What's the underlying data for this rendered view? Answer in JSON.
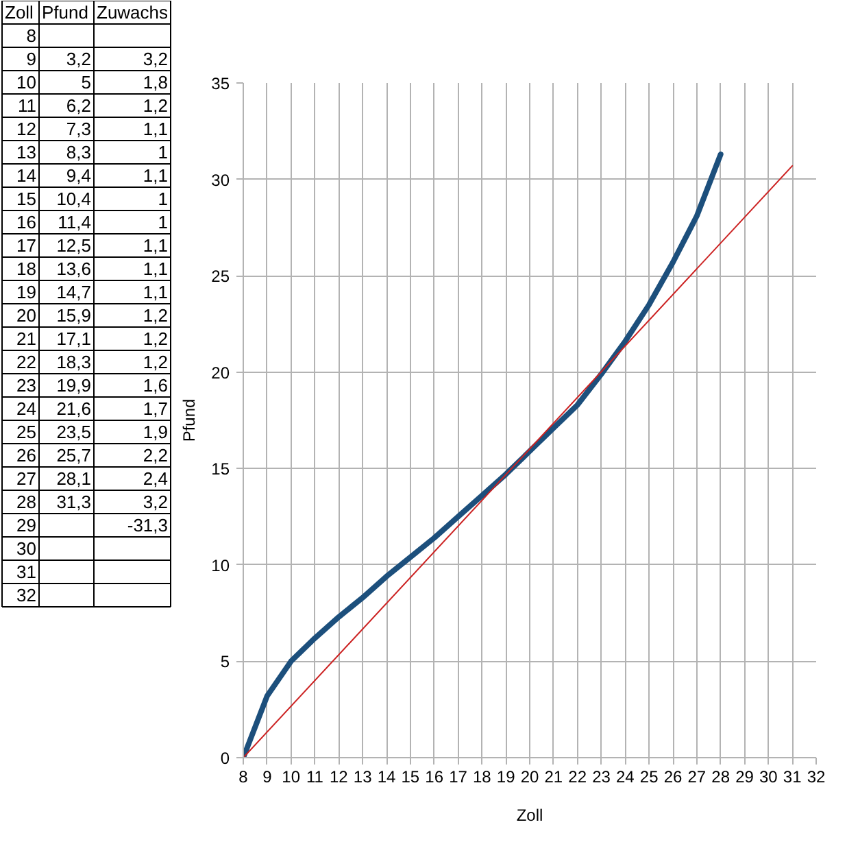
{
  "chart_data": [
    {
      "type": "heatmap",
      "ylabel": "Zoll",
      "categories": [
        "Pfund",
        "Zuwachs"
      ],
      "y_categories": [
        "8",
        "9",
        "10",
        "11",
        "12",
        "13",
        "14",
        "15",
        "16",
        "17",
        "18",
        "19",
        "20",
        "21",
        "22",
        "23",
        "24",
        "25",
        "26",
        "27",
        "28",
        "29",
        "30",
        "31",
        "32"
      ],
      "cells": [
        [
          null,
          null
        ],
        [
          "3,2",
          "3,2"
        ],
        [
          "5",
          "1,8"
        ],
        [
          "6,2",
          "1,2"
        ],
        [
          "7,3",
          "1,1"
        ],
        [
          "8,3",
          "1"
        ],
        [
          "9,4",
          "1,1"
        ],
        [
          "10,4",
          "1"
        ],
        [
          "11,4",
          "1"
        ],
        [
          "12,5",
          "1,1"
        ],
        [
          "13,6",
          "1,1"
        ],
        [
          "14,7",
          "1,1"
        ],
        [
          "15,9",
          "1,2"
        ],
        [
          "17,1",
          "1,2"
        ],
        [
          "18,3",
          "1,2"
        ],
        [
          "19,9",
          "1,6"
        ],
        [
          "21,6",
          "1,7"
        ],
        [
          "23,5",
          "1,9"
        ],
        [
          "25,7",
          "2,2"
        ],
        [
          "28,1",
          "2,4"
        ],
        [
          "31,3",
          "3,2"
        ],
        [
          null,
          "-31,3"
        ],
        [
          null,
          null
        ],
        [
          null,
          null
        ],
        [
          null,
          null
        ]
      ]
    },
    {
      "type": "line",
      "xlabel": "Zoll",
      "ylabel": "Pfund",
      "xlim": [
        8,
        32
      ],
      "ylim": [
        0,
        35
      ],
      "xticks": [
        8,
        9,
        10,
        11,
        12,
        13,
        14,
        15,
        16,
        17,
        18,
        19,
        20,
        21,
        22,
        23,
        24,
        25,
        26,
        27,
        28,
        29,
        30,
        31,
        32
      ],
      "yticks": [
        0,
        5,
        10,
        15,
        20,
        25,
        30,
        35
      ],
      "grid": true,
      "series": [
        {
          "color": "#1c4f7c",
          "x": [
            8,
            9,
            10,
            11,
            12,
            13,
            14,
            15,
            16,
            17,
            18,
            19,
            20,
            21,
            22,
            23,
            24,
            25,
            26,
            27,
            28
          ],
          "values": [
            0,
            3.2,
            5,
            6.2,
            7.3,
            8.3,
            9.4,
            10.4,
            11.4,
            12.5,
            13.6,
            14.7,
            15.9,
            17.1,
            18.3,
            19.9,
            21.6,
            23.5,
            25.7,
            28.1,
            31.3
          ]
        },
        {
          "color": "#cc2222",
          "x": [
            8,
            31
          ],
          "values": [
            0,
            30.7
          ]
        }
      ]
    }
  ]
}
